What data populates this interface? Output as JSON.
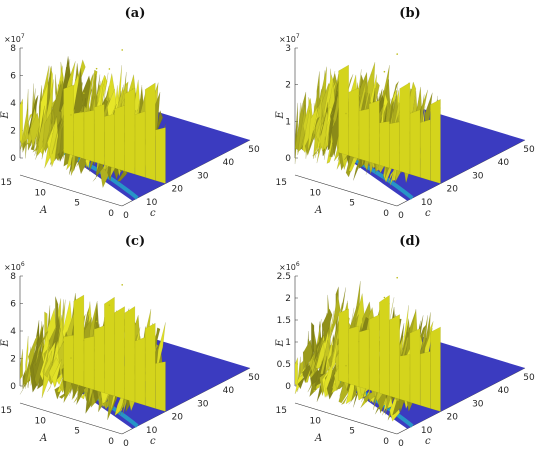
{
  "chart_data": [
    {
      "type": "surface",
      "panel_label": "(a)",
      "zlabel": "E",
      "xlabel": "c",
      "ylabel": "A",
      "z_multiplier": "×10^7",
      "z_ticks": [
        "0",
        "2",
        "4",
        "6",
        "8"
      ],
      "z_max": 8,
      "c_ticks": [
        "0",
        "10",
        "20",
        "30",
        "40",
        "50"
      ],
      "c_range": [
        0,
        50
      ],
      "a_ticks": [
        "0",
        "5",
        "10",
        "15"
      ],
      "a_range": [
        0,
        15
      ],
      "series": [
        {
          "c": [
            0,
            5,
            10,
            15,
            20
          ],
          "max_E": [
            5.5,
            6.6,
            7.9,
            7.4,
            8.3
          ]
        }
      ],
      "colors": {
        "peaks": "#e8e821",
        "floor": "#3b3bc0",
        "edge": "#26a0c8"
      }
    },
    {
      "type": "surface",
      "panel_label": "(b)",
      "zlabel": "E",
      "xlabel": "c",
      "ylabel": "A",
      "z_multiplier": "×10^7",
      "z_ticks": [
        "0",
        "1",
        "2",
        "3"
      ],
      "z_max": 3,
      "c_ticks": [
        "0",
        "10",
        "20",
        "30",
        "40",
        "50"
      ],
      "c_range": [
        0,
        50
      ],
      "a_ticks": [
        "0",
        "5",
        "10",
        "15"
      ],
      "a_range": [
        0,
        15
      ],
      "series": [
        {
          "c": [
            0,
            5,
            10,
            15,
            20
          ],
          "max_E": [
            2.1,
            2.4,
            2.8,
            2.7,
            3.0
          ]
        }
      ],
      "colors": {
        "peaks": "#e8e821",
        "floor": "#3b3bc0",
        "edge": "#26a0c8"
      }
    },
    {
      "type": "surface",
      "panel_label": "(c)",
      "zlabel": "E",
      "xlabel": "c",
      "ylabel": "A",
      "z_multiplier": "×10^6",
      "z_ticks": [
        "0",
        "2",
        "4",
        "6",
        "8"
      ],
      "z_max": 8,
      "c_ticks": [
        "0",
        "10",
        "20",
        "30",
        "40",
        "50"
      ],
      "c_range": [
        0,
        50
      ],
      "a_ticks": [
        "0",
        "5",
        "10",
        "15"
      ],
      "a_range": [
        0,
        15
      ],
      "series": [
        {
          "c": [
            0,
            5,
            10,
            15,
            20
          ],
          "max_E": [
            4.4,
            5.2,
            6.1,
            6.8,
            7.8
          ]
        }
      ],
      "colors": {
        "peaks": "#e8e821",
        "floor": "#3b3bc0",
        "edge": "#26a0c8"
      }
    },
    {
      "type": "surface",
      "panel_label": "(d)",
      "zlabel": "E",
      "xlabel": "c",
      "ylabel": "A",
      "z_multiplier": "×10^6",
      "z_ticks": [
        "0",
        "0.5",
        "1",
        "1.5",
        "2",
        "2.5"
      ],
      "z_max": 2.5,
      "c_ticks": [
        "0",
        "10",
        "20",
        "30",
        "40",
        "50"
      ],
      "c_range": [
        0,
        50
      ],
      "a_ticks": [
        "0",
        "5",
        "10",
        "15"
      ],
      "a_range": [
        0,
        15
      ],
      "series": [
        {
          "c": [
            0,
            5,
            10,
            15,
            20
          ],
          "max_E": [
            1.2,
            1.6,
            2.0,
            2.3,
            2.6
          ]
        }
      ],
      "colors": {
        "peaks": "#e8e821",
        "floor": "#3b3bc0",
        "edge": "#26a0c8"
      }
    }
  ]
}
